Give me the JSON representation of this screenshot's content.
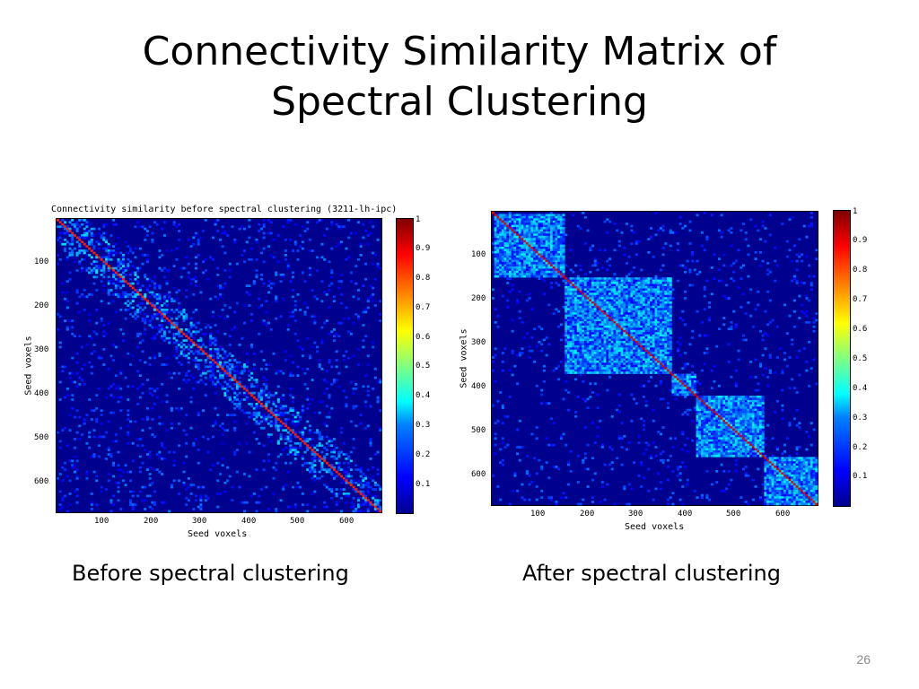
{
  "slide": {
    "title_line1": "Connectivity Similarity Matrix of",
    "title_line2": "Spectral Clustering",
    "caption_left": "Before spectral clustering",
    "caption_right": "After spectral clustering",
    "page_number": "26"
  },
  "chart_data": [
    {
      "type": "heatmap",
      "title": "Connectivity similarity before spectral clustering (3211-lh-ipc)",
      "xlabel": "Seed voxels",
      "ylabel": "Seed voxels",
      "xticks": [
        "100",
        "200",
        "300",
        "400",
        "500",
        "600"
      ],
      "yticks": [
        "100",
        "200",
        "300",
        "400",
        "500",
        "600"
      ],
      "xlim": [
        1,
        670
      ],
      "ylim": [
        1,
        670
      ],
      "colorbar": {
        "range": [
          0,
          1
        ],
        "ticks": [
          "1",
          "0.9",
          "0.8",
          "0.7",
          "0.6",
          "0.5",
          "0.4",
          "0.3",
          "0.2",
          "0.1"
        ]
      },
      "colormap": "jet",
      "pattern": "diagonal-scattered"
    },
    {
      "type": "heatmap",
      "title": "",
      "xlabel": "Seed voxels",
      "ylabel": "Seed voxels",
      "xticks": [
        "100",
        "200",
        "300",
        "400",
        "500",
        "600"
      ],
      "yticks": [
        "100",
        "200",
        "300",
        "400",
        "500",
        "600"
      ],
      "xlim": [
        1,
        670
      ],
      "ylim": [
        1,
        670
      ],
      "colorbar": {
        "range": [
          0,
          1
        ],
        "ticks": [
          "1",
          "0.9",
          "0.8",
          "0.7",
          "0.6",
          "0.5",
          "0.4",
          "0.3",
          "0.2",
          "0.1"
        ]
      },
      "colormap": "jet",
      "pattern": "block-diagonal",
      "blocks": [
        [
          1,
          150
        ],
        [
          150,
          370
        ],
        [
          370,
          420
        ],
        [
          420,
          560
        ],
        [
          560,
          670
        ]
      ]
    }
  ],
  "colors": {
    "low": "#00008f",
    "mid": "#00ffff",
    "high": "#800000"
  }
}
